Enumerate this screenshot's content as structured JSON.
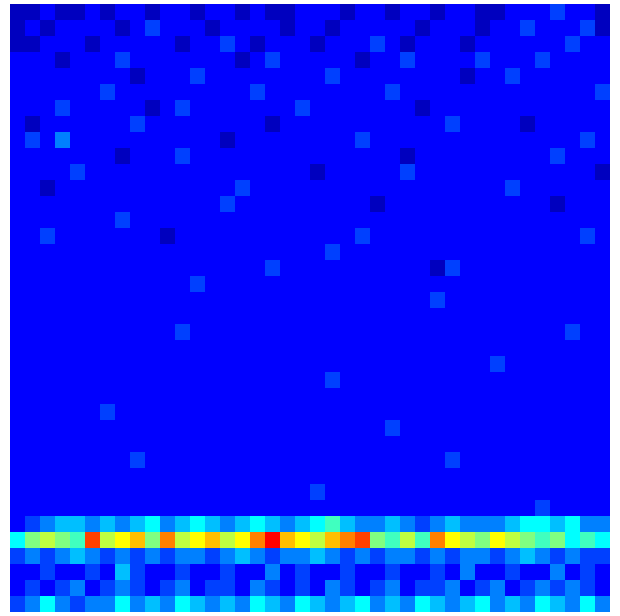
{
  "chart_data": {
    "type": "heatmap",
    "tick_labels": false,
    "color_range": [
      0,
      16
    ],
    "cells": [
      [
        1,
        1,
        2,
        1,
        1,
        2,
        1,
        2,
        2,
        1,
        2,
        2,
        1,
        2,
        2,
        1,
        2,
        1,
        1,
        2,
        2,
        2,
        1,
        2,
        2,
        1,
        2,
        2,
        1,
        2,
        2,
        1,
        1,
        2,
        2,
        2,
        3,
        2,
        2,
        1
      ],
      [
        1,
        2,
        1,
        2,
        2,
        2,
        2,
        1,
        2,
        3,
        2,
        2,
        2,
        1,
        2,
        2,
        2,
        2,
        1,
        2,
        2,
        1,
        2,
        2,
        2,
        2,
        2,
        1,
        2,
        2,
        2,
        1,
        2,
        2,
        3,
        2,
        2,
        2,
        3,
        1
      ],
      [
        1,
        1,
        2,
        2,
        2,
        1,
        2,
        2,
        2,
        2,
        2,
        1,
        2,
        2,
        3,
        2,
        1,
        2,
        2,
        2,
        1,
        2,
        2,
        2,
        3,
        2,
        1,
        2,
        2,
        2,
        1,
        2,
        2,
        2,
        2,
        2,
        2,
        3,
        2,
        2
      ],
      [
        2,
        2,
        2,
        1,
        2,
        2,
        2,
        3,
        2,
        2,
        2,
        2,
        2,
        2,
        2,
        1,
        2,
        3,
        2,
        2,
        2,
        2,
        2,
        1,
        2,
        2,
        3,
        2,
        2,
        2,
        2,
        3,
        2,
        2,
        2,
        3,
        2,
        2,
        2,
        2
      ],
      [
        2,
        2,
        2,
        2,
        2,
        2,
        2,
        2,
        1,
        2,
        2,
        2,
        3,
        2,
        2,
        2,
        2,
        2,
        2,
        2,
        2,
        3,
        2,
        2,
        2,
        2,
        2,
        2,
        2,
        2,
        1,
        2,
        2,
        3,
        2,
        2,
        2,
        2,
        2,
        2
      ],
      [
        2,
        2,
        2,
        2,
        2,
        2,
        3,
        2,
        2,
        2,
        2,
        2,
        2,
        2,
        2,
        2,
        3,
        2,
        2,
        2,
        2,
        2,
        2,
        2,
        2,
        3,
        2,
        2,
        2,
        2,
        2,
        2,
        2,
        2,
        2,
        2,
        2,
        2,
        2,
        3
      ],
      [
        2,
        2,
        2,
        3,
        2,
        2,
        2,
        2,
        2,
        1,
        2,
        3,
        2,
        2,
        2,
        2,
        2,
        2,
        2,
        3,
        2,
        2,
        2,
        2,
        2,
        2,
        2,
        1,
        2,
        2,
        2,
        2,
        2,
        2,
        2,
        2,
        2,
        2,
        2,
        2
      ],
      [
        2,
        1,
        2,
        2,
        2,
        2,
        2,
        2,
        3,
        2,
        2,
        2,
        2,
        2,
        2,
        2,
        2,
        1,
        2,
        2,
        2,
        2,
        2,
        2,
        2,
        2,
        2,
        2,
        2,
        3,
        2,
        2,
        2,
        2,
        1,
        2,
        2,
        2,
        2,
        2
      ],
      [
        2,
        3,
        2,
        4,
        2,
        2,
        2,
        2,
        2,
        2,
        2,
        2,
        2,
        2,
        1,
        2,
        2,
        2,
        2,
        2,
        2,
        2,
        2,
        3,
        2,
        2,
        2,
        2,
        2,
        2,
        2,
        2,
        2,
        2,
        2,
        2,
        2,
        2,
        3,
        2
      ],
      [
        2,
        2,
        2,
        2,
        2,
        2,
        2,
        1,
        2,
        2,
        2,
        3,
        2,
        2,
        2,
        2,
        2,
        2,
        2,
        2,
        2,
        2,
        2,
        2,
        2,
        2,
        1,
        2,
        2,
        2,
        2,
        2,
        2,
        2,
        2,
        2,
        3,
        2,
        2,
        2
      ],
      [
        2,
        2,
        2,
        2,
        3,
        2,
        2,
        2,
        2,
        2,
        2,
        2,
        2,
        2,
        2,
        2,
        2,
        2,
        2,
        2,
        1,
        2,
        2,
        2,
        2,
        2,
        3,
        2,
        2,
        2,
        2,
        2,
        2,
        2,
        2,
        2,
        2,
        2,
        2,
        1
      ],
      [
        2,
        2,
        1,
        2,
        2,
        2,
        2,
        2,
        2,
        2,
        2,
        2,
        2,
        2,
        2,
        3,
        2,
        2,
        2,
        2,
        2,
        2,
        2,
        2,
        2,
        2,
        2,
        2,
        2,
        2,
        2,
        2,
        2,
        3,
        2,
        2,
        2,
        2,
        2,
        2
      ],
      [
        2,
        2,
        2,
        2,
        2,
        2,
        2,
        2,
        2,
        2,
        2,
        2,
        2,
        2,
        3,
        2,
        2,
        2,
        2,
        2,
        2,
        2,
        2,
        2,
        1,
        2,
        2,
        2,
        2,
        2,
        2,
        2,
        2,
        2,
        2,
        2,
        1,
        2,
        2,
        2
      ],
      [
        2,
        2,
        2,
        2,
        2,
        2,
        2,
        3,
        2,
        2,
        2,
        2,
        2,
        2,
        2,
        2,
        2,
        2,
        2,
        2,
        2,
        2,
        2,
        2,
        2,
        2,
        2,
        2,
        2,
        2,
        2,
        2,
        2,
        2,
        2,
        2,
        2,
        2,
        2,
        2
      ],
      [
        2,
        2,
        3,
        2,
        2,
        2,
        2,
        2,
        2,
        2,
        1,
        2,
        2,
        2,
        2,
        2,
        2,
        2,
        2,
        2,
        2,
        2,
        2,
        3,
        2,
        2,
        2,
        2,
        2,
        2,
        2,
        2,
        2,
        2,
        2,
        2,
        2,
        2,
        3,
        2
      ],
      [
        2,
        2,
        2,
        2,
        2,
        2,
        2,
        2,
        2,
        2,
        2,
        2,
        2,
        2,
        2,
        2,
        2,
        2,
        2,
        2,
        2,
        3,
        2,
        2,
        2,
        2,
        2,
        2,
        2,
        2,
        2,
        2,
        2,
        2,
        2,
        2,
        2,
        2,
        2,
        2
      ],
      [
        2,
        2,
        2,
        2,
        2,
        2,
        2,
        2,
        2,
        2,
        2,
        2,
        2,
        2,
        2,
        2,
        2,
        3,
        2,
        2,
        2,
        2,
        2,
        2,
        2,
        2,
        2,
        2,
        1,
        3,
        2,
        2,
        2,
        2,
        2,
        2,
        2,
        2,
        2,
        2
      ],
      [
        2,
        2,
        2,
        2,
        2,
        2,
        2,
        2,
        2,
        2,
        2,
        2,
        3,
        2,
        2,
        2,
        2,
        2,
        2,
        2,
        2,
        2,
        2,
        2,
        2,
        2,
        2,
        2,
        2,
        2,
        2,
        2,
        2,
        2,
        2,
        2,
        2,
        2,
        2,
        2
      ],
      [
        2,
        2,
        2,
        2,
        2,
        2,
        2,
        2,
        2,
        2,
        2,
        2,
        2,
        2,
        2,
        2,
        2,
        2,
        2,
        2,
        2,
        2,
        2,
        2,
        2,
        2,
        2,
        2,
        3,
        2,
        2,
        2,
        2,
        2,
        2,
        2,
        2,
        2,
        2,
        2
      ],
      [
        2,
        2,
        2,
        2,
        2,
        2,
        2,
        2,
        2,
        2,
        2,
        2,
        2,
        2,
        2,
        2,
        2,
        2,
        2,
        2,
        2,
        2,
        2,
        2,
        2,
        2,
        2,
        2,
        2,
        2,
        2,
        2,
        2,
        2,
        2,
        2,
        2,
        2,
        2,
        2
      ],
      [
        2,
        2,
        2,
        2,
        2,
        2,
        2,
        2,
        2,
        2,
        2,
        3,
        2,
        2,
        2,
        2,
        2,
        2,
        2,
        2,
        2,
        2,
        2,
        2,
        2,
        2,
        2,
        2,
        2,
        2,
        2,
        2,
        2,
        2,
        2,
        2,
        2,
        3,
        2,
        2
      ],
      [
        2,
        2,
        2,
        2,
        2,
        2,
        2,
        2,
        2,
        2,
        2,
        2,
        2,
        2,
        2,
        2,
        2,
        2,
        2,
        2,
        2,
        2,
        2,
        2,
        2,
        2,
        2,
        2,
        2,
        2,
        2,
        2,
        2,
        2,
        2,
        2,
        2,
        2,
        2,
        2
      ],
      [
        2,
        2,
        2,
        2,
        2,
        2,
        2,
        2,
        2,
        2,
        2,
        2,
        2,
        2,
        2,
        2,
        2,
        2,
        2,
        2,
        2,
        2,
        2,
        2,
        2,
        2,
        2,
        2,
        2,
        2,
        2,
        2,
        3,
        2,
        2,
        2,
        2,
        2,
        2,
        2
      ],
      [
        2,
        2,
        2,
        2,
        2,
        2,
        2,
        2,
        2,
        2,
        2,
        2,
        2,
        2,
        2,
        2,
        2,
        2,
        2,
        2,
        2,
        3,
        2,
        2,
        2,
        2,
        2,
        2,
        2,
        2,
        2,
        2,
        2,
        2,
        2,
        2,
        2,
        2,
        2,
        2
      ],
      [
        2,
        2,
        2,
        2,
        2,
        2,
        2,
        2,
        2,
        2,
        2,
        2,
        2,
        2,
        2,
        2,
        2,
        2,
        2,
        2,
        2,
        2,
        2,
        2,
        2,
        2,
        2,
        2,
        2,
        2,
        2,
        2,
        2,
        2,
        2,
        2,
        2,
        2,
        2,
        2
      ],
      [
        2,
        2,
        2,
        2,
        2,
        2,
        3,
        2,
        2,
        2,
        2,
        2,
        2,
        2,
        2,
        2,
        2,
        2,
        2,
        2,
        2,
        2,
        2,
        2,
        2,
        2,
        2,
        2,
        2,
        2,
        2,
        2,
        2,
        2,
        2,
        2,
        2,
        2,
        2,
        2
      ],
      [
        2,
        2,
        2,
        2,
        2,
        2,
        2,
        2,
        2,
        2,
        2,
        2,
        2,
        2,
        2,
        2,
        2,
        2,
        2,
        2,
        2,
        2,
        2,
        2,
        2,
        3,
        2,
        2,
        2,
        2,
        2,
        2,
        2,
        2,
        2,
        2,
        2,
        2,
        2,
        2
      ],
      [
        2,
        2,
        2,
        2,
        2,
        2,
        2,
        2,
        2,
        2,
        2,
        2,
        2,
        2,
        2,
        2,
        2,
        2,
        2,
        2,
        2,
        2,
        2,
        2,
        2,
        2,
        2,
        2,
        2,
        2,
        2,
        2,
        2,
        2,
        2,
        2,
        2,
        2,
        2,
        2
      ],
      [
        2,
        2,
        2,
        2,
        2,
        2,
        2,
        2,
        3,
        2,
        2,
        2,
        2,
        2,
        2,
        2,
        2,
        2,
        2,
        2,
        2,
        2,
        2,
        2,
        2,
        2,
        2,
        2,
        2,
        3,
        2,
        2,
        2,
        2,
        2,
        2,
        2,
        2,
        2,
        2
      ],
      [
        2,
        2,
        2,
        2,
        2,
        2,
        2,
        2,
        2,
        2,
        2,
        2,
        2,
        2,
        2,
        2,
        2,
        2,
        2,
        2,
        2,
        2,
        2,
        2,
        2,
        2,
        2,
        2,
        2,
        2,
        2,
        2,
        2,
        2,
        2,
        2,
        2,
        2,
        2,
        2
      ],
      [
        2,
        2,
        2,
        2,
        2,
        2,
        2,
        2,
        2,
        2,
        2,
        2,
        2,
        2,
        2,
        2,
        2,
        2,
        2,
        2,
        3,
        2,
        2,
        2,
        2,
        2,
        2,
        2,
        2,
        2,
        2,
        2,
        2,
        2,
        2,
        2,
        2,
        2,
        2,
        2
      ],
      [
        2,
        2,
        2,
        2,
        2,
        2,
        2,
        2,
        2,
        2,
        2,
        2,
        2,
        2,
        2,
        2,
        2,
        2,
        2,
        2,
        2,
        2,
        2,
        2,
        2,
        2,
        2,
        2,
        2,
        2,
        2,
        2,
        2,
        2,
        2,
        3,
        2,
        2,
        2,
        2
      ],
      [
        2,
        3,
        4,
        5,
        5,
        4,
        5,
        4,
        5,
        6,
        4,
        5,
        6,
        5,
        4,
        5,
        6,
        5,
        4,
        5,
        6,
        7,
        5,
        4,
        4,
        5,
        4,
        3,
        4,
        5,
        4,
        4,
        4,
        5,
        6,
        6,
        5,
        6,
        4,
        4
      ],
      [
        6,
        8,
        9,
        8,
        7,
        13,
        9,
        10,
        11,
        8,
        12,
        9,
        10,
        11,
        9,
        10,
        12,
        14,
        11,
        10,
        9,
        11,
        12,
        13,
        8,
        7,
        9,
        7,
        12,
        10,
        9,
        8,
        10,
        9,
        8,
        7,
        8,
        6,
        7,
        6
      ],
      [
        3,
        4,
        3,
        4,
        5,
        4,
        3,
        4,
        3,
        4,
        3,
        4,
        4,
        3,
        4,
        5,
        4,
        3,
        4,
        4,
        5,
        4,
        3,
        4,
        3,
        4,
        4,
        3,
        4,
        3,
        4,
        4,
        3,
        4,
        5,
        4,
        3,
        4,
        3,
        3
      ],
      [
        2,
        2,
        3,
        2,
        2,
        3,
        2,
        5,
        3,
        2,
        2,
        3,
        2,
        2,
        3,
        2,
        2,
        4,
        2,
        3,
        2,
        2,
        3,
        2,
        2,
        3,
        2,
        2,
        3,
        2,
        4,
        2,
        2,
        3,
        2,
        2,
        4,
        2,
        3,
        2
      ],
      [
        2,
        3,
        2,
        3,
        4,
        2,
        3,
        4,
        3,
        2,
        3,
        4,
        2,
        3,
        3,
        2,
        4,
        3,
        2,
        3,
        2,
        4,
        3,
        2,
        3,
        4,
        2,
        3,
        3,
        4,
        2,
        3,
        4,
        2,
        3,
        4,
        3,
        4,
        3,
        2
      ],
      [
        3,
        4,
        6,
        4,
        3,
        4,
        4,
        6,
        4,
        5,
        4,
        6,
        5,
        4,
        5,
        4,
        6,
        5,
        4,
        6,
        5,
        4,
        5,
        6,
        4,
        5,
        4,
        6,
        5,
        4,
        5,
        6,
        4,
        5,
        4,
        6,
        5,
        4,
        6,
        4
      ]
    ]
  }
}
